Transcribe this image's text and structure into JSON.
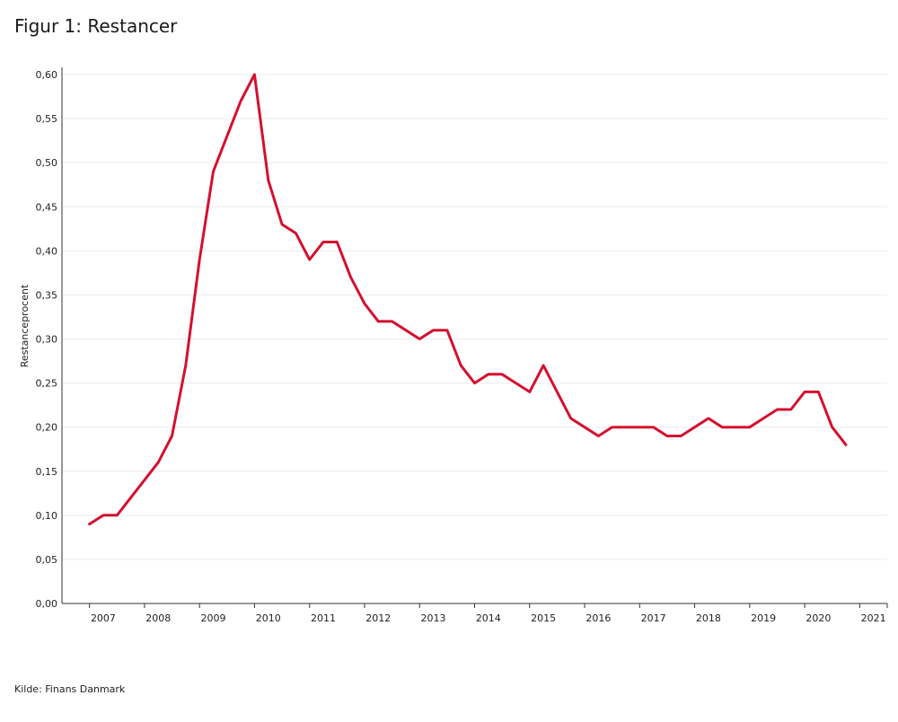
{
  "figure": {
    "title": "Figur 1: Restancer",
    "source": "Kilde: Finans Danmark"
  },
  "colors": {
    "series": "#d4102f",
    "gridline": "#ebebeb",
    "axis": "#333333"
  },
  "chart_data": {
    "type": "line",
    "title": "Figur 1: Restancer",
    "xlabel": "",
    "ylabel": "Restanceprocent",
    "ylim": [
      0,
      0.6
    ],
    "yticks": [
      "0,00",
      "0,05",
      "0,10",
      "0,15",
      "0,20",
      "0,25",
      "0,30",
      "0,35",
      "0,40",
      "0,45",
      "0,50",
      "0,55",
      "0,60"
    ],
    "xlim": [
      2006.25,
      2021.25
    ],
    "xticks": [
      "2007",
      "2008",
      "2009",
      "2010",
      "2011",
      "2012",
      "2013",
      "2014",
      "2015",
      "2016",
      "2017",
      "2018",
      "2019",
      "2020",
      "2021"
    ],
    "grid": "horizontal",
    "series": [
      {
        "x": [
          2006.75,
          2007.0,
          2007.25,
          2007.5,
          2007.75,
          2008.0,
          2008.25,
          2008.5,
          2008.75,
          2009.0,
          2009.25,
          2009.5,
          2009.75,
          2010.0,
          2010.25,
          2010.5,
          2010.75,
          2011.0,
          2011.25,
          2011.5,
          2011.75,
          2012.0,
          2012.25,
          2012.5,
          2012.75,
          2013.0,
          2013.25,
          2013.5,
          2013.75,
          2014.0,
          2014.25,
          2014.5,
          2014.75,
          2015.0,
          2015.25,
          2015.5,
          2015.75,
          2016.0,
          2016.25,
          2016.5,
          2016.75,
          2017.0,
          2017.25,
          2017.5,
          2017.75,
          2018.0,
          2018.25,
          2018.5,
          2018.75,
          2019.0,
          2019.25,
          2019.5,
          2019.75,
          2020.0,
          2020.25,
          2020.5
        ],
        "values": [
          0.09,
          0.1,
          0.1,
          0.12,
          0.14,
          0.16,
          0.19,
          0.27,
          0.39,
          0.49,
          0.53,
          0.57,
          0.6,
          0.48,
          0.43,
          0.42,
          0.39,
          0.41,
          0.41,
          0.37,
          0.34,
          0.32,
          0.32,
          0.31,
          0.3,
          0.31,
          0.31,
          0.27,
          0.25,
          0.26,
          0.26,
          0.25,
          0.24,
          0.27,
          0.24,
          0.21,
          0.2,
          0.19,
          0.2,
          0.2,
          0.2,
          0.2,
          0.19,
          0.19,
          0.2,
          0.21,
          0.2,
          0.2,
          0.2,
          0.21,
          0.22,
          0.22,
          0.24,
          0.24,
          0.2,
          0.18
        ]
      }
    ]
  }
}
